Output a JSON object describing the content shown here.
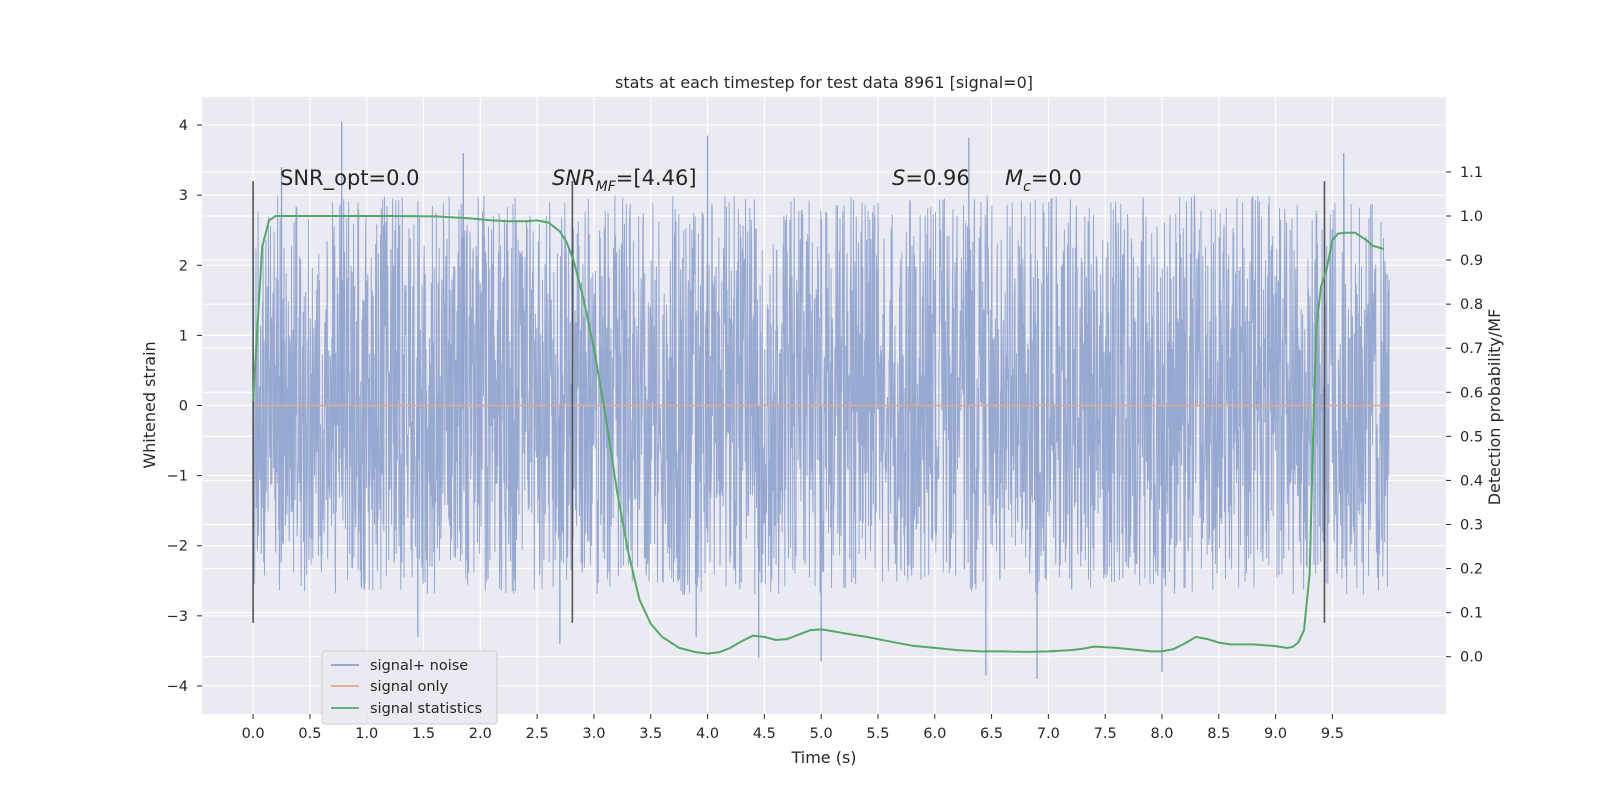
{
  "chart_data": {
    "type": "line",
    "title": "stats at each timestep for test data 8961 [signal=0]",
    "xlabel": "Time (s)",
    "ylabel": "Whitened strain",
    "y2label": "Detection probability/MF",
    "xlim": [
      -0.45,
      10.5
    ],
    "ylim": [
      -4.4,
      4.4
    ],
    "y2lim": [
      -0.13,
      1.27
    ],
    "x_ticks": [
      0.0,
      0.5,
      1.0,
      1.5,
      2.0,
      2.5,
      3.0,
      3.5,
      4.0,
      4.5,
      5.0,
      5.5,
      6.0,
      6.5,
      7.0,
      7.5,
      8.0,
      8.5,
      9.0,
      9.5
    ],
    "x_tick_labels": [
      "0.0",
      "0.5",
      "1.0",
      "1.5",
      "2.0",
      "2.5",
      "3.0",
      "3.5",
      "4.0",
      "4.5",
      "5.0",
      "5.5",
      "6.0",
      "6.5",
      "7.0",
      "7.5",
      "8.0",
      "8.5",
      "9.0",
      "9.5"
    ],
    "y_ticks": [
      4,
      3,
      2,
      1,
      0,
      -1,
      -2,
      -3,
      -4
    ],
    "y_tick_labels": [
      "4",
      "3",
      "2",
      "1",
      "0",
      "−1",
      "−2",
      "−3",
      "−4"
    ],
    "y2_ticks": [
      1.1,
      1.0,
      0.9,
      0.8,
      0.7,
      0.6,
      0.5,
      0.4,
      0.3,
      0.2,
      0.1,
      0.0
    ],
    "y2_tick_labels": [
      "1.1",
      "1.0",
      "0.9",
      "0.8",
      "0.7",
      "0.6",
      "0.5",
      "0.4",
      "0.3",
      "0.2",
      "0.1",
      "0.0"
    ],
    "grid": true,
    "legend_position": "lower-left",
    "annotations": {
      "snr_opt": "SNR_opt=0.0",
      "snr_mf_main": "SNR",
      "snr_mf_sub": "MF",
      "snr_mf_rest": "=[4.46]",
      "s_main": "S",
      "s_rest": "=0.96",
      "mc_main": "M",
      "mc_sub": "c",
      "mc_rest": "=0.0"
    },
    "vertical_markers": [
      0.0,
      2.81,
      9.43
    ],
    "marker_range": [
      -3.1,
      3.2
    ],
    "noise": {
      "x_range": [
        0.0,
        10.0
      ],
      "core_band": [
        -1.25,
        1.3
      ],
      "typical_extremes": [
        -2.7,
        3.0
      ],
      "spikes": [
        {
          "x": 0.78,
          "y": 4.05
        },
        {
          "x": 4.0,
          "y": 3.85
        },
        {
          "x": 6.3,
          "y": 3.82
        },
        {
          "x": 4.45,
          "y": -3.6
        },
        {
          "x": 6.45,
          "y": -3.85
        },
        {
          "x": 6.9,
          "y": -3.9
        },
        {
          "x": 8.0,
          "y": -3.8
        },
        {
          "x": 1.85,
          "y": 3.6
        },
        {
          "x": 2.7,
          "y": -3.4
        },
        {
          "x": 1.45,
          "y": -3.3
        },
        {
          "x": 0.25,
          "y": 3.4
        },
        {
          "x": 9.6,
          "y": 3.6
        },
        {
          "x": 5.0,
          "y": -3.65
        },
        {
          "x": 3.9,
          "y": -3.3
        }
      ]
    },
    "series": [
      {
        "name": "signal+ noise",
        "color": "#8ea1cd"
      },
      {
        "name": "signal only",
        "color": "#e3a98b",
        "x": [
          0.0,
          10.0
        ],
        "y": [
          0.0,
          0.0
        ]
      },
      {
        "name": "signal statistics",
        "color": "#55a868",
        "x": [
          0.0,
          0.08,
          0.14,
          0.2,
          0.3,
          0.5,
          0.8,
          1.2,
          1.6,
          1.9,
          2.1,
          2.25,
          2.4,
          2.5,
          2.6,
          2.7,
          2.76,
          2.82,
          2.9,
          3.0,
          3.1,
          3.2,
          3.3,
          3.4,
          3.5,
          3.6,
          3.75,
          3.9,
          4.0,
          4.1,
          4.2,
          4.3,
          4.4,
          4.5,
          4.6,
          4.7,
          4.8,
          4.9,
          5.0,
          5.1,
          5.2,
          5.4,
          5.6,
          5.8,
          6.0,
          6.2,
          6.4,
          6.6,
          6.8,
          7.0,
          7.2,
          7.3,
          7.4,
          7.6,
          7.8,
          7.9,
          8.0,
          8.1,
          8.2,
          8.3,
          8.4,
          8.5,
          8.6,
          8.8,
          9.0,
          9.1,
          9.15,
          9.2,
          9.25,
          9.3,
          9.33,
          9.36,
          9.4,
          9.45,
          9.5,
          9.55,
          9.6,
          9.7,
          9.8,
          9.85,
          9.95
        ],
        "y": [
          0.58,
          0.93,
          0.99,
          1.0,
          1.0,
          1.0,
          1.0,
          1.0,
          0.999,
          0.995,
          0.99,
          0.988,
          0.988,
          0.99,
          0.985,
          0.965,
          0.94,
          0.9,
          0.82,
          0.7,
          0.55,
          0.38,
          0.24,
          0.13,
          0.075,
          0.045,
          0.02,
          0.01,
          0.007,
          0.01,
          0.02,
          0.035,
          0.048,
          0.045,
          0.038,
          0.04,
          0.05,
          0.06,
          0.062,
          0.058,
          0.053,
          0.045,
          0.035,
          0.025,
          0.02,
          0.015,
          0.012,
          0.012,
          0.011,
          0.012,
          0.015,
          0.018,
          0.023,
          0.02,
          0.015,
          0.012,
          0.012,
          0.017,
          0.03,
          0.045,
          0.04,
          0.032,
          0.028,
          0.028,
          0.024,
          0.02,
          0.022,
          0.032,
          0.06,
          0.19,
          0.5,
          0.75,
          0.84,
          0.88,
          0.945,
          0.96,
          0.962,
          0.962,
          0.945,
          0.933,
          0.925
        ]
      }
    ]
  }
}
